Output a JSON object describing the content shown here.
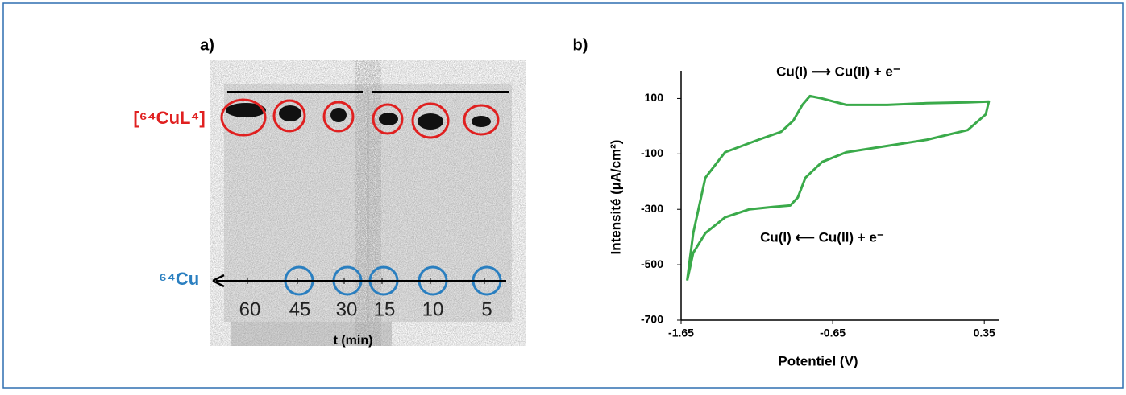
{
  "panel_a": {
    "label": "a)",
    "complex_label": "[⁶⁴CuL⁴]",
    "free_label": "⁶⁴Cu",
    "times": [
      60,
      45,
      30,
      15,
      10,
      5
    ],
    "xlabel": "t (min)"
  },
  "chart_data": {
    "type": "line",
    "label": "b)",
    "xlabel": "Potentiel (V)",
    "ylabel": "Intensité  (µA/cm²)",
    "annotations": [
      "Cu(I) ⟶ Cu(II) + e⁻",
      "Cu(I) ⟵ Cu(II) + e⁻"
    ],
    "color": "#3aaa4a",
    "x": [
      -1.61,
      -1.57,
      -1.49,
      -1.36,
      -1.14,
      -0.99,
      -0.91,
      -0.85,
      -0.8,
      -0.72,
      -0.56,
      -0.29,
      -0.03,
      0.24,
      0.38,
      0.36,
      0.24,
      -0.03,
      -0.29,
      -0.56,
      -0.72,
      -0.83,
      -0.88,
      -0.93,
      -1.04,
      -1.2,
      -1.36,
      -1.49,
      -1.57,
      -1.61
    ],
    "values": [
      -557,
      -386,
      -186,
      -94,
      -49,
      -20,
      20,
      77,
      109,
      100,
      77,
      77,
      83,
      86,
      89,
      43,
      -14,
      -49,
      -71,
      -94,
      -129,
      -186,
      -257,
      -286,
      -291,
      -300,
      -329,
      -386,
      -457,
      -557
    ],
    "xlim": [
      -1.65,
      0.45
    ],
    "xticks": [
      -1.65,
      -0.65,
      0.35
    ],
    "ylim": [
      -700,
      200
    ],
    "yticks": [
      -700,
      -500,
      -300,
      -100,
      100
    ]
  }
}
